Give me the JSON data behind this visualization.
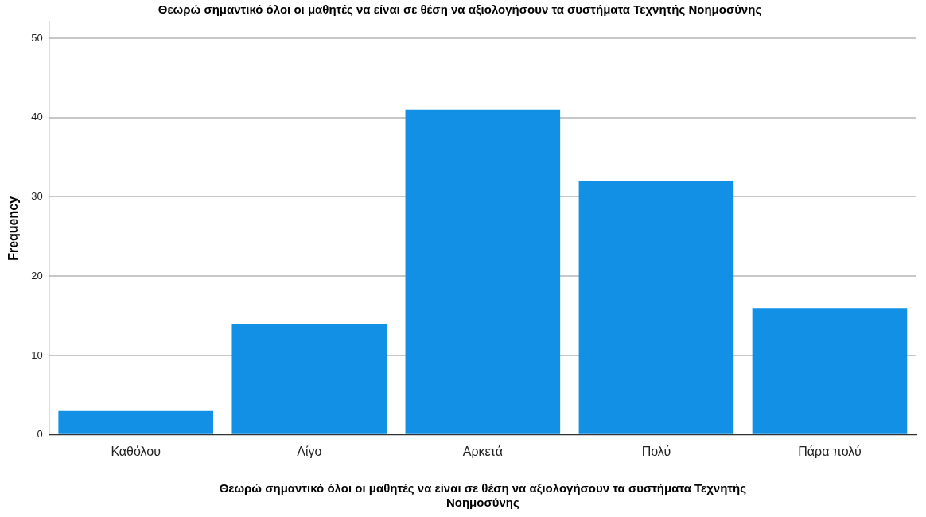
{
  "chart_data": {
    "type": "bar",
    "title": "Θεωρώ σημαντικό όλοι οι μαθητές να είναι σε θέση να αξιολογήσουν τα συστήματα Τεχνητής Νοημοσύνης",
    "xlabel": [
      "Θεωρώ σημαντικό όλοι οι μαθητές να είναι σε θέση να αξιολογήσουν τα συστήματα Τεχνητής",
      "Νοημοσύνης"
    ],
    "ylabel": "Frequency",
    "categories": [
      "Καθόλου",
      "Λίγο",
      "Αρκετά",
      "Πολύ",
      "Πάρα πολύ"
    ],
    "values": [
      3,
      14,
      41,
      32,
      16
    ],
    "color": "#1290e5",
    "ylim": [
      0,
      52
    ],
    "yticks": [
      0,
      10,
      20,
      30,
      40,
      50
    ],
    "grid": "y"
  }
}
